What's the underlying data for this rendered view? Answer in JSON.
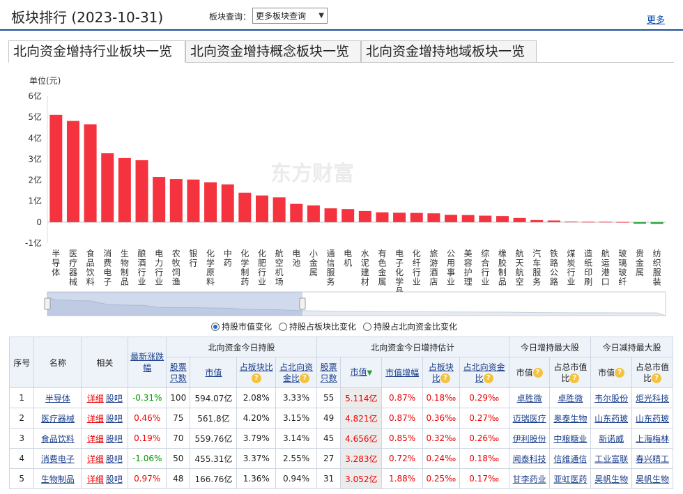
{
  "header": {
    "title": "板块排行 (2023-10-31)",
    "query_label": "板块查询：",
    "query_select": "更多板块查询",
    "more": "更多"
  },
  "tabs": [
    "北向资金增持行业板块一览",
    "北向资金增持概念板块一览",
    "北向资金增持地域板块一览"
  ],
  "watermark": "东方财富",
  "chart_data": {
    "type": "bar",
    "unit_label": "单位(元)",
    "ylim": [
      -1,
      6
    ],
    "yticks": [
      "-1亿",
      "0",
      "1亿",
      "2亿",
      "3亿",
      "4亿",
      "5亿",
      "6亿"
    ],
    "categories": [
      "半导体",
      "医疗器械",
      "食品饮料",
      "消费电子",
      "生物制品",
      "酿酒行业",
      "电力行业",
      "农牧饲渔",
      "银行",
      "化学原料",
      "中药",
      "化学制药",
      "化肥行业",
      "航空机场",
      "电池",
      "小金属",
      "通信服务",
      "电机",
      "水泥建材",
      "有色金属",
      "电子化学品",
      "化纤行业",
      "旅游酒店",
      "公用事业",
      "美容护理",
      "综合行业",
      "橡胶制品",
      "航天航空",
      "汽车服务",
      "铁路公路",
      "煤炭行业",
      "造纸印刷",
      "航运港口",
      "玻璃玻纤",
      "贵金属",
      "纺织服装"
    ],
    "values": [
      5.11,
      4.82,
      4.66,
      3.28,
      3.05,
      2.95,
      2.15,
      2.05,
      2.03,
      1.9,
      1.8,
      1.4,
      1.27,
      1.18,
      0.87,
      0.8,
      0.66,
      0.62,
      0.53,
      0.47,
      0.45,
      0.44,
      0.42,
      0.35,
      0.34,
      0.31,
      0.29,
      0.2,
      0.1,
      0.08,
      0.03,
      0.02,
      0.02,
      0.01,
      -0.07,
      -0.08
    ],
    "bar_color": "#f5333f",
    "neg_color": "#2aa63c"
  },
  "radios": {
    "options": [
      "持股市值变化",
      "持股占板块比变化",
      "持股占北向资金比变化"
    ],
    "selected": 0
  },
  "table": {
    "h_index": "序号",
    "h_name": "名称",
    "h_related": "相关",
    "h_change": "最新涨跌幅",
    "h_group_hold": "北向资金今日持股",
    "h_group_est": "北向资金今日增持估计",
    "h_group_max_in": "今日增持最大股",
    "h_group_max_out": "今日减持最大股",
    "h_count": "股票只数",
    "h_value": "市值",
    "h_sector_ratio": "占板块比",
    "h_north_ratio": "占北向资金比",
    "h_value_change": "市值增幅",
    "h_cap": "市值",
    "h_cap_ratio": "占总市值比",
    "sort_mark": "▼",
    "help": "?",
    "rows": [
      {
        "idx": "1",
        "name": "半导体",
        "detail": "详细",
        "bar": "股吧",
        "chg": "-0.31%",
        "chg_color": "green",
        "count": "100",
        "value": "594.07亿",
        "sec": "2.08%",
        "north": "3.33%",
        "ecount": "55",
        "evalue": "5.114亿",
        "einc": "0.87%",
        "esec": "0.18‰",
        "enorth": "0.29‰",
        "in_cap": "卓胜微",
        "in_ratio": "卓胜微",
        "out_cap": "韦尔股份",
        "out_ratio": "炬光科技"
      },
      {
        "idx": "2",
        "name": "医疗器械",
        "detail": "详细",
        "bar": "股吧",
        "chg": "0.46%",
        "chg_color": "red",
        "count": "75",
        "value": "561.8亿",
        "sec": "4.20%",
        "north": "3.15%",
        "ecount": "49",
        "evalue": "4.821亿",
        "einc": "0.87%",
        "esec": "0.36‰",
        "enorth": "0.27‰",
        "in_cap": "迈瑞医疗",
        "in_ratio": "奥泰生物",
        "out_cap": "山东药玻",
        "out_ratio": "山东药玻"
      },
      {
        "idx": "3",
        "name": "食品饮料",
        "detail": "详细",
        "bar": "股吧",
        "chg": "0.19%",
        "chg_color": "red",
        "count": "70",
        "value": "559.76亿",
        "sec": "3.79%",
        "north": "3.14%",
        "ecount": "45",
        "evalue": "4.656亿",
        "einc": "0.85%",
        "esec": "0.32‰",
        "enorth": "0.26‰",
        "in_cap": "伊利股份",
        "in_ratio": "中粮糖业",
        "out_cap": "新诺威",
        "out_ratio": "上海梅林"
      },
      {
        "idx": "4",
        "name": "消费电子",
        "detail": "详细",
        "bar": "股吧",
        "chg": "-1.06%",
        "chg_color": "green",
        "count": "50",
        "value": "455.31亿",
        "sec": "3.37%",
        "north": "2.55%",
        "ecount": "27",
        "evalue": "3.283亿",
        "einc": "0.72%",
        "esec": "0.24‰",
        "enorth": "0.18‰",
        "in_cap": "闻泰科技",
        "in_ratio": "信维通信",
        "out_cap": "工业富联",
        "out_ratio": "春兴精工"
      },
      {
        "idx": "5",
        "name": "生物制品",
        "detail": "详细",
        "bar": "股吧",
        "chg": "0.97%",
        "chg_color": "red",
        "count": "48",
        "value": "166.76亿",
        "sec": "1.36%",
        "north": "0.94%",
        "ecount": "31",
        "evalue": "3.052亿",
        "einc": "1.88%",
        "esec": "0.25‰",
        "enorth": "0.17‰",
        "in_cap": "甘李药业",
        "in_ratio": "亚虹医药",
        "out_cap": "昊帆生物",
        "out_ratio": "昊帆生物"
      }
    ]
  }
}
